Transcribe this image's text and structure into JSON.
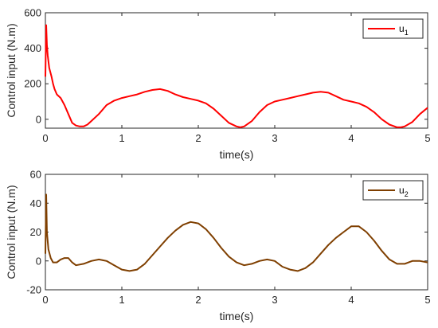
{
  "chart_data": [
    {
      "type": "line",
      "xlabel": "time(s)",
      "ylabel": "Control input (N.m)",
      "xlim": [
        0,
        5
      ],
      "ylim": [
        -50,
        600
      ],
      "xticks": [
        0,
        1,
        2,
        3,
        4,
        5
      ],
      "yticks": [
        0,
        200,
        400,
        600
      ],
      "grid": false,
      "legend_position": "top-right",
      "series": [
        {
          "name": "u1",
          "legend_base": "u",
          "legend_sub": "1",
          "color": "#ff0000",
          "x": [
            0,
            0.01,
            0.02,
            0.03,
            0.05,
            0.08,
            0.1,
            0.12,
            0.15,
            0.2,
            0.25,
            0.3,
            0.35,
            0.4,
            0.45,
            0.5,
            0.55,
            0.6,
            0.7,
            0.8,
            0.9,
            1.0,
            1.1,
            1.2,
            1.3,
            1.4,
            1.5,
            1.6,
            1.7,
            1.8,
            1.9,
            2.0,
            2.1,
            2.2,
            2.3,
            2.4,
            2.5,
            2.55,
            2.6,
            2.7,
            2.8,
            2.9,
            3.0,
            3.1,
            3.2,
            3.3,
            3.4,
            3.5,
            3.6,
            3.7,
            3.8,
            3.9,
            4.0,
            4.1,
            4.2,
            4.3,
            4.4,
            4.5,
            4.6,
            4.65,
            4.7,
            4.8,
            4.9,
            5.0
          ],
          "y": [
            240,
            530,
            420,
            360,
            290,
            240,
            200,
            170,
            140,
            120,
            80,
            30,
            -20,
            -35,
            -40,
            -40,
            -30,
            -10,
            30,
            80,
            105,
            120,
            130,
            140,
            155,
            165,
            170,
            160,
            140,
            125,
            115,
            105,
            90,
            60,
            20,
            -20,
            -40,
            -45,
            -40,
            -10,
            40,
            80,
            100,
            110,
            120,
            130,
            140,
            150,
            155,
            150,
            130,
            110,
            100,
            90,
            70,
            40,
            0,
            -30,
            -45,
            -45,
            -40,
            -15,
            30,
            65
          ]
        }
      ]
    },
    {
      "type": "line",
      "xlabel": "time(s)",
      "ylabel": "Control input (N.m)",
      "xlim": [
        0,
        5
      ],
      "ylim": [
        -20,
        60
      ],
      "xticks": [
        0,
        1,
        2,
        3,
        4,
        5
      ],
      "yticks": [
        -20,
        0,
        20,
        40,
        60
      ],
      "grid": false,
      "legend_position": "top-right",
      "series": [
        {
          "name": "u2",
          "legend_base": "u",
          "legend_sub": "2",
          "color": "#7f3f00",
          "x": [
            0,
            0.01,
            0.02,
            0.04,
            0.07,
            0.1,
            0.15,
            0.2,
            0.25,
            0.3,
            0.35,
            0.4,
            0.5,
            0.6,
            0.7,
            0.8,
            0.9,
            1.0,
            1.1,
            1.2,
            1.3,
            1.4,
            1.5,
            1.6,
            1.7,
            1.8,
            1.9,
            2.0,
            2.1,
            2.2,
            2.3,
            2.4,
            2.5,
            2.6,
            2.7,
            2.8,
            2.9,
            3.0,
            3.1,
            3.2,
            3.3,
            3.4,
            3.5,
            3.6,
            3.7,
            3.8,
            3.9,
            4.0,
            4.1,
            4.2,
            4.3,
            4.4,
            4.5,
            4.6,
            4.7,
            4.8,
            4.9,
            5.0
          ],
          "y": [
            5,
            46,
            20,
            8,
            2,
            -1,
            -1,
            1,
            2,
            2,
            -1,
            -3,
            -2,
            0,
            1,
            0,
            -3,
            -6,
            -7,
            -6,
            -2,
            4,
            10,
            16,
            21,
            25,
            27,
            26,
            22,
            16,
            9,
            3,
            -1,
            -3,
            -2,
            0,
            1,
            0,
            -4,
            -6,
            -7,
            -5,
            -1,
            5,
            11,
            16,
            20,
            24,
            24,
            20,
            14,
            7,
            1,
            -2,
            -2,
            0,
            0,
            -1
          ]
        }
      ]
    }
  ]
}
